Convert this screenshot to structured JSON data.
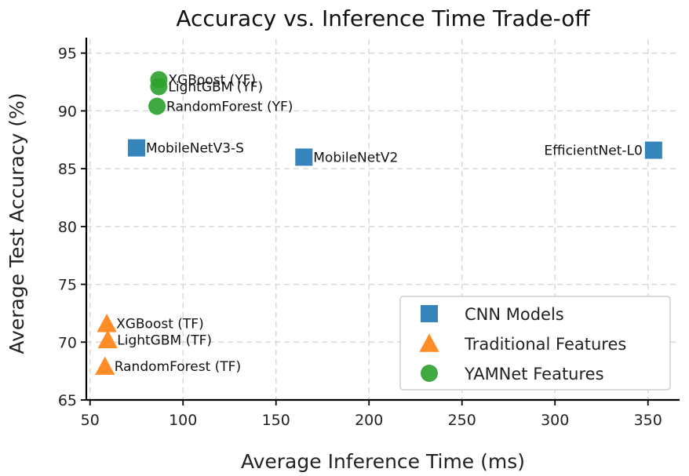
{
  "chart_data": {
    "type": "scatter",
    "title": "Accuracy vs. Inference Time Trade-off",
    "xlabel": "Average Inference Time (ms)",
    "ylabel": "Average Test Accuracy (%)",
    "xlim": [
      48,
      367
    ],
    "ylim": [
      65,
      96.2
    ],
    "xticks": [
      50,
      100,
      150,
      200,
      250,
      300,
      350
    ],
    "yticks": [
      65,
      70,
      75,
      80,
      85,
      90,
      95
    ],
    "grid": true,
    "legend_position": "bottom-right",
    "series": [
      {
        "name": "CNN Models",
        "marker": "square",
        "color": "#1f77b4",
        "points": [
          {
            "label": "MobileNetV3-S",
            "x": 75,
            "y": 86.8,
            "label_side": "right"
          },
          {
            "label": "MobileNetV2",
            "x": 165,
            "y": 86.0,
            "label_side": "right"
          },
          {
            "label": "EfficientNet-L0",
            "x": 353,
            "y": 86.6,
            "label_side": "left"
          }
        ]
      },
      {
        "name": "Traditional Features",
        "marker": "triangle",
        "color": "#ff7f0e",
        "points": [
          {
            "label": "XGBoost (TF)",
            "x": 59,
            "y": 71.6,
            "label_side": "right"
          },
          {
            "label": "LightGBM (TF)",
            "x": 59.5,
            "y": 70.2,
            "label_side": "right"
          },
          {
            "label": "RandomForest (TF)",
            "x": 58,
            "y": 67.9,
            "label_side": "right"
          }
        ]
      },
      {
        "name": "YAMNet Features",
        "marker": "circle",
        "color": "#2ca02c",
        "points": [
          {
            "label": "XGBoost (YF)",
            "x": 87,
            "y": 92.7,
            "label_side": "right"
          },
          {
            "label": "LightGBM (YF)",
            "x": 87,
            "y": 92.1,
            "label_side": "right"
          },
          {
            "label": "RandomForest (YF)",
            "x": 86,
            "y": 90.4,
            "label_side": "right"
          }
        ]
      }
    ]
  }
}
